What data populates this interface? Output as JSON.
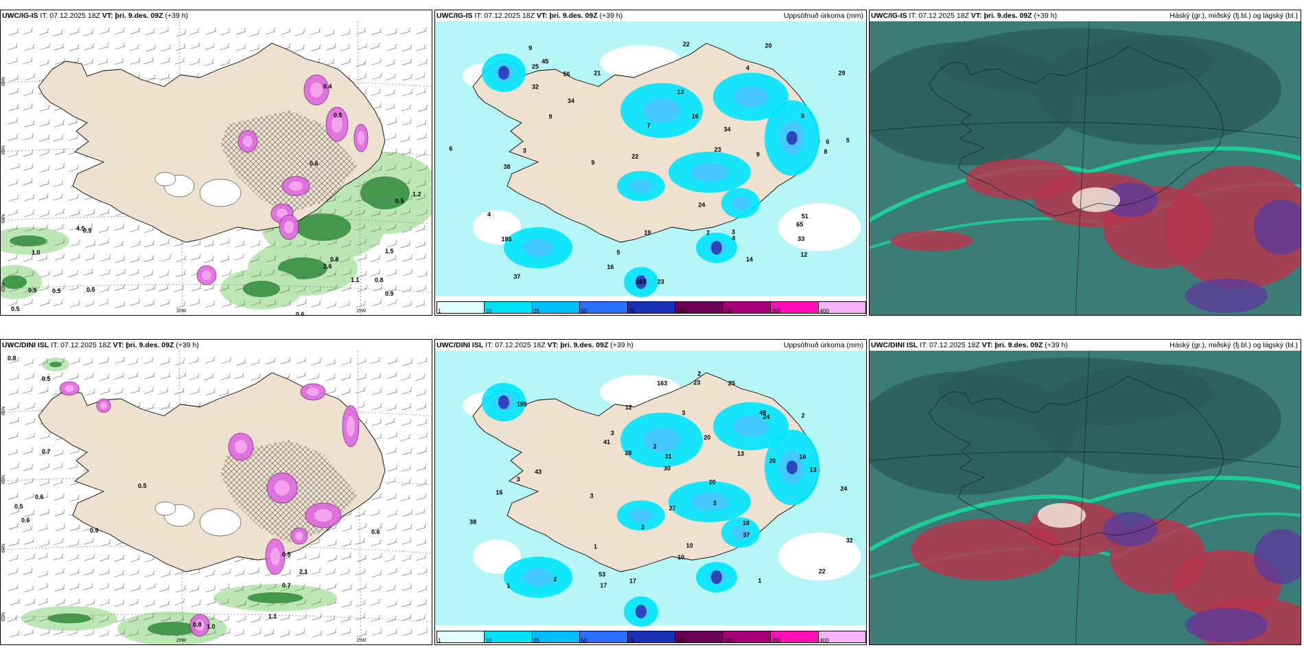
{
  "panels": [
    {
      "model": "UWC/IG-IS",
      "it": "IT: 07.12.2025 18Z",
      "vt_label": "VT:",
      "vt": "þri. 9.des. 09Z",
      "lead": "(+39 h)",
      "right_title": "",
      "kind": "precip-type",
      "labels": [
        "0.4",
        "0.5",
        "0.6",
        "0.9",
        "1.0",
        "4.5",
        "0.9",
        "0.5",
        "0.5",
        "0.5",
        "0.6",
        "0.5",
        "1.2",
        "1.5",
        "2.6",
        "0.8",
        "0.8",
        "1.1",
        "0.9"
      ],
      "lat_labels": [
        "66N",
        "65N",
        "64N",
        "63N"
      ],
      "lon_labels": [
        "20W",
        "15W"
      ]
    },
    {
      "model": "UWC/IG-IS",
      "it": "IT: 07.12.2025 18Z",
      "vt_label": "VT:",
      "vt": "þri. 9.des. 09Z",
      "lead": "(+39 h)",
      "right_title": "Uppsöfnuð úrkoma (mm)",
      "kind": "accum",
      "labels": [
        "2",
        "3",
        "5",
        "5",
        "12",
        "32",
        "34",
        "20",
        "23",
        "16",
        "9",
        "37",
        "34",
        "22",
        "22",
        "65",
        "38",
        "14",
        "19",
        "45",
        "9",
        "33",
        "25",
        "24",
        "21",
        "16",
        "51",
        "56",
        "185",
        "163",
        "29",
        "4",
        "3",
        "9",
        "13",
        "8",
        "6",
        "6",
        "7",
        "5",
        "9",
        "4",
        "4",
        "23"
      ],
      "colorbar": [
        "1",
        "10",
        "25",
        "50",
        "75",
        "100",
        "150",
        "200",
        "400"
      ]
    },
    {
      "model": "UWC/IG-IS",
      "it": "IT: 07.12.2025 18Z",
      "vt_label": "VT:",
      "vt": "þri. 9.des. 09Z",
      "lead": "(+39 h)",
      "right_title": "Háský (gr.), miðský (fj.bl.) og lágský (bl.)",
      "kind": "cloud"
    },
    {
      "model": "UWC/DINI ISL",
      "it": "IT: 07.12.2025 18Z",
      "vt_label": "VT:",
      "vt": "þri. 9.des. 09Z",
      "lead": "(+39 h)",
      "right_title": "",
      "kind": "precip-type",
      "labels": [
        "0.8",
        "0.5",
        "0.7",
        "0.5",
        "0.6",
        "0.5",
        "0.6",
        "0.9",
        "0.5",
        "2.1",
        "0.7",
        "1.1",
        "0.6",
        "1.0",
        "0.8"
      ],
      "lat_labels": [
        "66N",
        "65N",
        "64N",
        "63N"
      ],
      "lon_labels": [
        "20W",
        "15W"
      ]
    },
    {
      "model": "UWC/DINI ISL",
      "it": "IT: 07.12.2025 18Z",
      "vt_label": "VT:",
      "vt": "þri. 9.des. 09Z",
      "lead": "(+39 h)",
      "right_title": "Uppsöfnuð úrkoma (mm)",
      "kind": "accum",
      "labels": [
        "3",
        "3",
        "2",
        "2",
        "3",
        "3",
        "3",
        "16",
        "18",
        "20",
        "41",
        "24",
        "17",
        "28",
        "27",
        "13",
        "53",
        "49",
        "185",
        "163",
        "32",
        "38",
        "43",
        "30",
        "25",
        "24",
        "37",
        "17",
        "10",
        "22",
        "20",
        "13",
        "12",
        "10",
        "16",
        "23",
        "20",
        "31",
        "1",
        "1",
        "2",
        "2",
        "3",
        "1"
      ],
      "colorbar": [
        "1",
        "10",
        "25",
        "50",
        "75",
        "100",
        "150",
        "200",
        "400"
      ]
    },
    {
      "model": "UWC/DINI ISL",
      "it": "IT: 07.12.2025 18Z",
      "vt_label": "VT:",
      "vt": "þri. 9.des. 09Z",
      "lead": "(+39 h)",
      "right_title": "Háský (gr.), miðský (fj.bl.) og lágský (bl.)",
      "kind": "cloud"
    }
  ],
  "colors": {
    "land": "#efe1cf",
    "sea_accum": "#b7f6f6",
    "accum_light": "#00e5ff",
    "accum_mid": "#4cc3ff",
    "snow_pink": "#e06ae0",
    "rain_green": "#2e8a3a",
    "rain_light": "#b8e6b0",
    "cloud_base": "#3b7d76",
    "cloud_high": "#2a5b59",
    "cloud_mid": "#b5364e",
    "cloud_low": "#5c3b9a",
    "cloud_edge": "#18e0a0"
  },
  "colorbar_colors": [
    "#e0ffff",
    "#00e0f0",
    "#00bfff",
    "#2a6fff",
    "#1a2fb8",
    "#6a0050",
    "#a6007a",
    "#ff10b5",
    "#f6b4f6"
  ]
}
